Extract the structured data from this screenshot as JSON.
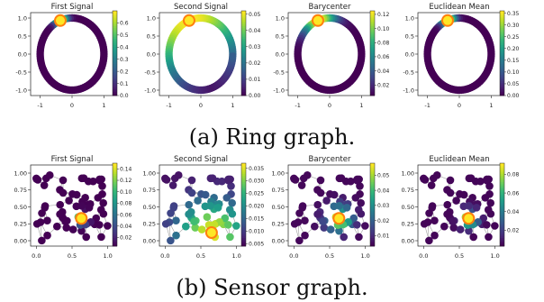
{
  "captions": {
    "ring": "(a) Ring graph.",
    "sensor": "(b) Sensor graph."
  },
  "palette": [
    "#440154",
    "#482878",
    "#3e4989",
    "#31688e",
    "#26828e",
    "#1f9e89",
    "#35b779",
    "#6ece58",
    "#b5de2b",
    "#fde725"
  ],
  "highlight_color": "#ff7f0e",
  "edge_color": "#a0a0a0",
  "chart_data": [
    {
      "type": "scatter",
      "graph": "ring",
      "title": "First Signal",
      "xlim": [
        -1.3,
        1.3
      ],
      "ylim": [
        -1.15,
        1.15
      ],
      "xticks": [
        -1,
        0,
        1
      ],
      "yticks": [
        -1.0,
        -0.5,
        0.0,
        0.5,
        1.0
      ],
      "nodes": 100,
      "source_angle_deg": 113,
      "value_profile": {
        "peak": 0.7,
        "width_deg": 9
      },
      "colorbar": {
        "min": 0,
        "max": 0.7,
        "ticks": [
          "0.0",
          "0.1",
          "0.2",
          "0.3",
          "0.4",
          "0.5",
          "0.6"
        ]
      }
    },
    {
      "type": "scatter",
      "graph": "ring",
      "title": "Second Signal",
      "xlim": [
        -1.3,
        1.3
      ],
      "ylim": [
        -1.15,
        1.15
      ],
      "xticks": [
        -1,
        0,
        1
      ],
      "yticks": [
        -1.0,
        -0.5,
        0.0,
        0.5,
        1.0
      ],
      "nodes": 100,
      "source_angle_deg": 113,
      "value_profile": {
        "peak": 0.052,
        "width_deg": 75
      },
      "colorbar": {
        "min": 0,
        "max": 0.052,
        "ticks": [
          "0.00",
          "0.01",
          "0.02",
          "0.03",
          "0.04",
          "0.05"
        ]
      }
    },
    {
      "type": "scatter",
      "graph": "ring",
      "title": "Barycenter",
      "xlim": [
        -1.3,
        1.3
      ],
      "ylim": [
        -1.15,
        1.15
      ],
      "xticks": [
        -1,
        0,
        1
      ],
      "yticks": [
        -1.0,
        -0.5,
        0.0,
        0.5,
        1.0
      ],
      "nodes": 100,
      "source_angle_deg": 113,
      "value_profile": {
        "peak": 0.125,
        "width_deg": 22
      },
      "colorbar": {
        "min": 0.005,
        "max": 0.125,
        "ticks": [
          "0.02",
          "0.04",
          "0.06",
          "0.08",
          "0.10",
          "0.12"
        ]
      }
    },
    {
      "type": "scatter",
      "graph": "ring",
      "title": "Euclidean Mean",
      "xlim": [
        -1.3,
        1.3
      ],
      "ylim": [
        -1.15,
        1.15
      ],
      "xticks": [
        -1,
        0,
        1
      ],
      "yticks": [
        -1.0,
        -0.5,
        0.0,
        0.5,
        1.0
      ],
      "nodes": 100,
      "source_angle_deg": 113,
      "value_profile": {
        "peak": 0.36,
        "width_deg": 10
      },
      "colorbar": {
        "min": 0,
        "max": 0.36,
        "ticks": [
          "0.00",
          "0.05",
          "0.10",
          "0.15",
          "0.20",
          "0.25",
          "0.30",
          "0.35"
        ]
      }
    },
    {
      "type": "scatter",
      "graph": "sensor",
      "title": "First Signal",
      "xlim": [
        -0.08,
        1.08
      ],
      "ylim": [
        -0.08,
        1.12
      ],
      "xticks": [
        "0.0",
        "0.5",
        "1.0"
      ],
      "yticks": [
        "0.00",
        "0.25",
        "0.50",
        "0.75",
        "1.00"
      ],
      "source": [
        0.63,
        0.33
      ],
      "value_profile": {
        "peak": 0.15,
        "decay": 0.06,
        "floor": 0.005
      },
      "colorbar": {
        "min": 0.005,
        "max": 0.15,
        "ticks": [
          "0.02",
          "0.04",
          "0.06",
          "0.08",
          "0.10",
          "0.12",
          "0.14"
        ]
      }
    },
    {
      "type": "scatter",
      "graph": "sensor",
      "title": "Second Signal",
      "xlim": [
        -0.08,
        1.08
      ],
      "ylim": [
        -0.08,
        1.12
      ],
      "xticks": [
        "0.0",
        "0.5",
        "1.0"
      ],
      "yticks": [
        "0.00",
        "0.25",
        "0.50",
        "0.75",
        "1.00"
      ],
      "source": [
        0.65,
        0.12
      ],
      "value_profile": {
        "peak": 0.036,
        "decay": 0.35,
        "floor": 0.005
      },
      "colorbar": {
        "min": 0.004,
        "max": 0.037,
        "ticks": [
          "0.005",
          "0.010",
          "0.015",
          "0.020",
          "0.025",
          "0.030",
          "0.035"
        ]
      }
    },
    {
      "type": "scatter",
      "graph": "sensor",
      "title": "Barycenter",
      "xlim": [
        -0.08,
        1.08
      ],
      "ylim": [
        -0.08,
        1.12
      ],
      "xticks": [
        "0.0",
        "0.5",
        "1.0"
      ],
      "yticks": [
        "0.00",
        "0.25",
        "0.50",
        "0.75",
        "1.00"
      ],
      "source": [
        0.63,
        0.33
      ],
      "value_profile": {
        "peak": 0.057,
        "decay": 0.13,
        "floor": 0.004
      },
      "colorbar": {
        "min": 0.003,
        "max": 0.058,
        "ticks": [
          "0.01",
          "0.02",
          "0.03",
          "0.04",
          "0.05"
        ]
      }
    },
    {
      "type": "scatter",
      "graph": "sensor",
      "title": "Euclidean Mean",
      "xlim": [
        -0.08,
        1.08
      ],
      "ylim": [
        -0.08,
        1.12
      ],
      "xticks": [
        "0.0",
        "0.5",
        "1.0"
      ],
      "yticks": [
        "0.00",
        "0.25",
        "0.50",
        "0.75",
        "1.00"
      ],
      "source": [
        0.63,
        0.33
      ],
      "value_profile": {
        "peak": 0.09,
        "decay": 0.09,
        "floor": 0.004
      },
      "colorbar": {
        "min": 0.003,
        "max": 0.092,
        "ticks": [
          "0.02",
          "0.04",
          "0.06",
          "0.08"
        ]
      }
    }
  ]
}
